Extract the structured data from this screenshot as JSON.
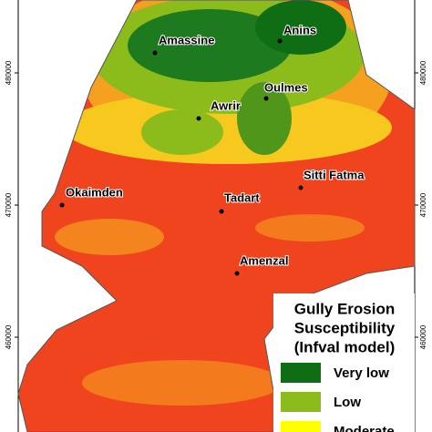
{
  "map": {
    "places": [
      {
        "label": "Amassine"
      },
      {
        "label": "Anins"
      },
      {
        "label": "Oulmes"
      },
      {
        "label": "Awrir"
      },
      {
        "label": "Sitti Fatma"
      },
      {
        "label": "Okaimden"
      },
      {
        "label": "Tadart"
      },
      {
        "label": "Amenzal"
      }
    ],
    "left_ticks": [
      "480000",
      "470000",
      "460000"
    ],
    "right_ticks": [
      "480000",
      "470000",
      "460000"
    ],
    "legend": {
      "title": [
        "Gully Erosion",
        "Susceptibility",
        "(Infval model)"
      ],
      "items": [
        {
          "label": "Very low",
          "color": "#0f6e14"
        },
        {
          "label": "Low",
          "color": "#8cbc1c"
        },
        {
          "label": "Moderate",
          "color": "#ffff00"
        }
      ]
    }
  }
}
